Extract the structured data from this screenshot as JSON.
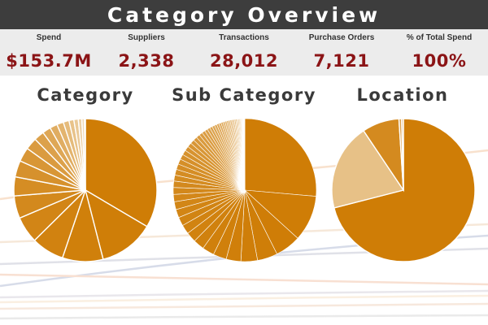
{
  "header": {
    "title": "Category Overview"
  },
  "kpis": [
    {
      "label": "Spend",
      "value": "$153.7M"
    },
    {
      "label": "Suppliers",
      "value": "2,338"
    },
    {
      "label": "Transactions",
      "value": "28,012"
    },
    {
      "label": "Purchase Orders",
      "value": "7,121"
    },
    {
      "label": "% of Total Spend",
      "value": "100%"
    }
  ],
  "colors": {
    "title_bar": "#3d3d3d",
    "kpi_strip": "#ececec",
    "kpi_value": "#8b1416",
    "pie_primary": "#cf7d06",
    "pie_light": "#f6ead6"
  },
  "sections": [
    {
      "title": "Category"
    },
    {
      "title": "Sub Category"
    },
    {
      "title": "Location"
    }
  ],
  "chart_data": [
    {
      "type": "pie",
      "title": "Category",
      "values": [
        33.5,
        12.5,
        9.2,
        7.4,
        6.0,
        5.1,
        4.3,
        3.7,
        3.2,
        2.7,
        2.3,
        1.9,
        1.7,
        1.5,
        1.3,
        1.1,
        1.0,
        0.8,
        0.6,
        0.2
      ]
    },
    {
      "type": "pie",
      "title": "Sub Category",
      "values": [
        25.4,
        10.0,
        5.6,
        4.4,
        3.6,
        3.2,
        2.9,
        2.6,
        2.4,
        2.2,
        2.0,
        1.9,
        1.8,
        1.7,
        1.6,
        1.5,
        1.4,
        1.3,
        1.25,
        1.2,
        1.15,
        1.1,
        1.05,
        1.0,
        0.95,
        0.9,
        0.85,
        0.8,
        0.75,
        0.7,
        0.65,
        0.6,
        0.58,
        0.55,
        0.52,
        0.5,
        0.48,
        0.45,
        0.42,
        0.4,
        0.38,
        0.36,
        0.34,
        0.32,
        0.3,
        0.28,
        0.26,
        0.24,
        0.22,
        0.2,
        0.18,
        0.16,
        0.14,
        0.12,
        0.1,
        0.09,
        0.08,
        0.07,
        0.06,
        0.05
      ]
    },
    {
      "type": "pie",
      "title": "Location",
      "values": [
        71.0,
        19.6,
        8.4,
        0.6,
        0.4
      ]
    }
  ]
}
